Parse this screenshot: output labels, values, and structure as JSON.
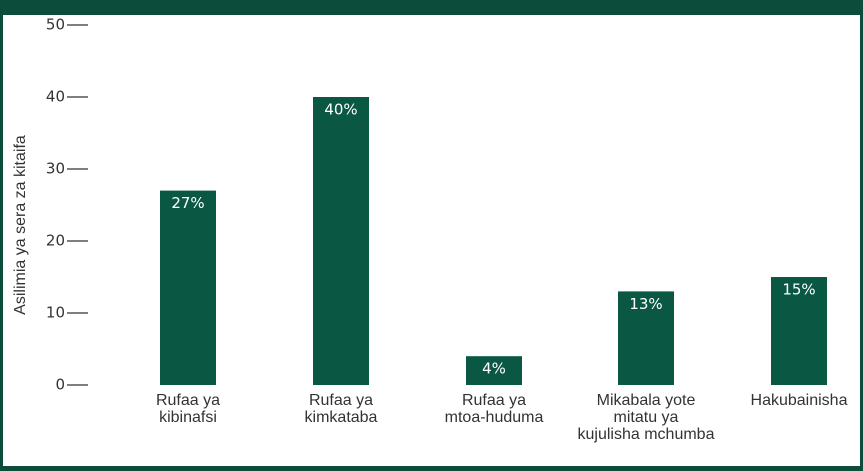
{
  "chart_data": {
    "type": "bar",
    "ylabel": "Asilimia ya sera za kitaifa",
    "categories": [
      "Rufaa ya\nkibinafsi",
      "Rufaa ya\nkimkataba",
      "Rufaa ya\nmtoa-huduma",
      "Mikabala yote\nmitatu ya\nkujulisha mchumba",
      "Hakubainisha"
    ],
    "values": [
      27,
      40,
      4,
      13,
      15
    ],
    "value_labels": [
      "27%",
      "40%",
      "4%",
      "13%",
      "15%"
    ],
    "color": "#0a5843",
    "ylim": [
      0,
      50
    ],
    "yticks": [
      0,
      10,
      20,
      30,
      40,
      50
    ],
    "grid": false
  }
}
